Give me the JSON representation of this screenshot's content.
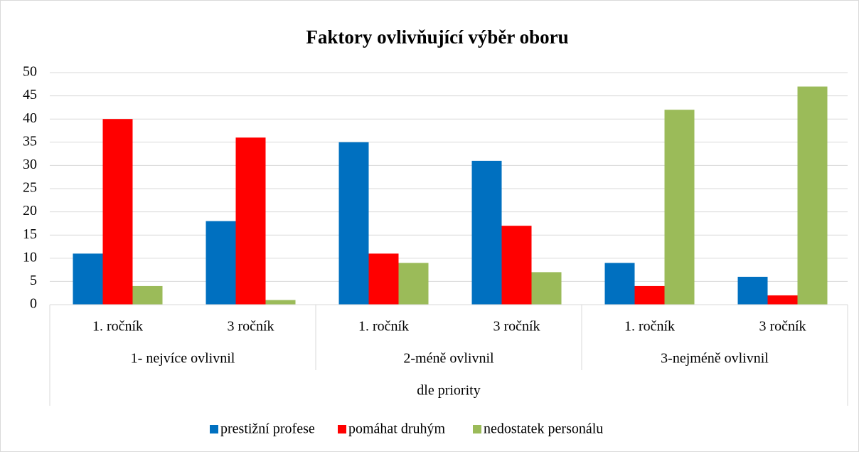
{
  "chart_data": {
    "type": "bar",
    "title": "Faktory ovlivňující výběr oboru",
    "xlabel": "dle priority",
    "groups": [
      {
        "name": "1- nejvíce ovlivnil",
        "categories": [
          "1. ročník",
          "3 ročník"
        ]
      },
      {
        "name": "2-méně ovlivnil",
        "categories": [
          "1. ročník",
          "3 ročník"
        ]
      },
      {
        "name": "3-nejméně ovlivnil",
        "categories": [
          "1. ročník",
          "3 ročník"
        ]
      }
    ],
    "series": [
      {
        "name": "prestižní profese",
        "color": "#0070c0",
        "values": [
          11,
          18,
          35,
          31,
          9,
          6
        ]
      },
      {
        "name": "pomáhat druhým",
        "color": "#ff0000",
        "values": [
          40,
          36,
          11,
          17,
          4,
          2
        ]
      },
      {
        "name": "nedostatek personálu",
        "color": "#9bbb59",
        "values": [
          4,
          1,
          9,
          7,
          42,
          47
        ]
      }
    ],
    "ylim": [
      0,
      50
    ],
    "yticks": [
      0,
      5,
      10,
      15,
      20,
      25,
      30,
      35,
      40,
      45,
      50
    ],
    "grid": true,
    "legend": "bottom"
  }
}
